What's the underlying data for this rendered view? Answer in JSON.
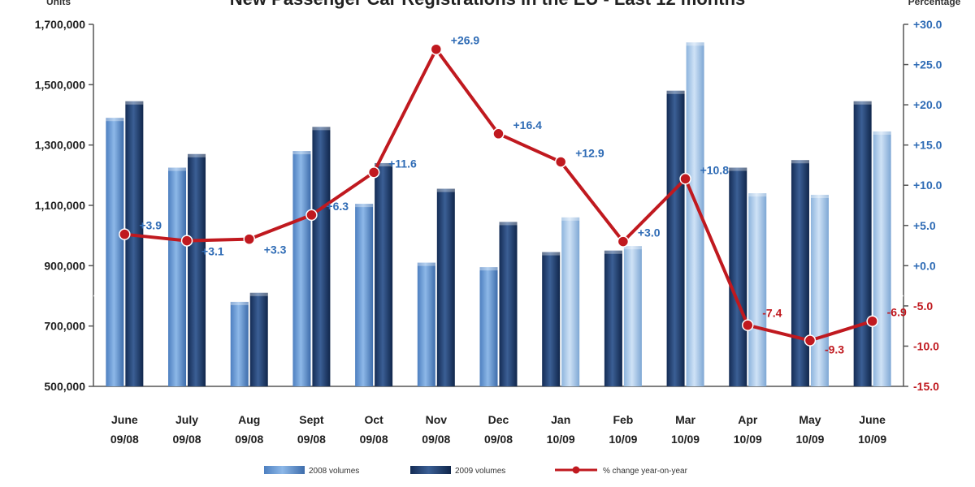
{
  "chart_data": {
    "type": "bar",
    "title": "New Passenger Car Registrations in the EU - Last 12 months",
    "ylabel_left": "Units",
    "ylabel_right": "Percentage",
    "categories": [
      [
        "June",
        "09/08"
      ],
      [
        "July",
        "09/08"
      ],
      [
        "Aug",
        "09/08"
      ],
      [
        "Sept",
        "09/08"
      ],
      [
        "Oct",
        "09/08"
      ],
      [
        "Nov",
        "09/08"
      ],
      [
        "Dec",
        "09/08"
      ],
      [
        "Jan",
        "10/09"
      ],
      [
        "Feb",
        "10/09"
      ],
      [
        "Mar",
        "10/09"
      ],
      [
        "Apr",
        "10/09"
      ],
      [
        "May",
        "10/09"
      ],
      [
        "June",
        "10/09"
      ]
    ],
    "ylim_left": [
      500000,
      1700000
    ],
    "yticks_left": [
      "500,000",
      "700,000",
      "900,000",
      "1,100,000",
      "1,300,000",
      "1,500,000",
      "1,700,000"
    ],
    "ylim_right": [
      -15,
      30
    ],
    "yticks_right": [
      "-15.0",
      "-10.0",
      "-5.0",
      "+0.0",
      "+5.0",
      "+10.0",
      "+15.0",
      "+20.0",
      "+25.0",
      "+30.0"
    ],
    "series": [
      {
        "name": "2008 volumes",
        "kind": "bar",
        "color": "#6fa0d8",
        "values": [
          1390000,
          1225000,
          780000,
          1280000,
          1105000,
          910000,
          895000,
          945000,
          950000,
          1480000,
          1225000,
          1250000,
          1445000
        ]
      },
      {
        "name": "2009 volumes",
        "kind": "bar",
        "color": "#1f3f70",
        "values": [
          1445000,
          1270000,
          810000,
          1360000,
          1240000,
          1155000,
          1045000,
          1060000,
          965000,
          1640000,
          1140000,
          1135000,
          1345000
        ]
      },
      {
        "name": "% change year-on-year",
        "kind": "line",
        "color": "#c0191f",
        "values": [
          3.9,
          3.1,
          3.3,
          6.3,
          11.6,
          26.9,
          16.4,
          12.9,
          3.0,
          10.8,
          -7.4,
          -9.3,
          -6.9
        ],
        "labels": [
          "+3.9",
          "+3.1",
          "+3.3",
          "+6.3",
          "+11.6",
          "+26.9",
          "+16.4",
          "+12.9",
          "+3.0",
          "+10.8",
          "-7.4",
          "-9.3",
          "-6.9"
        ]
      }
    ],
    "grid": false,
    "legend_position": "bottom"
  },
  "colors": {
    "left_axis_text": "#1f1f1f",
    "right_axis_positive": "#2e6bb5",
    "right_axis_negative": "#c0191f",
    "label_positive": "#2e6bb5",
    "label_negative": "#c0191f"
  }
}
